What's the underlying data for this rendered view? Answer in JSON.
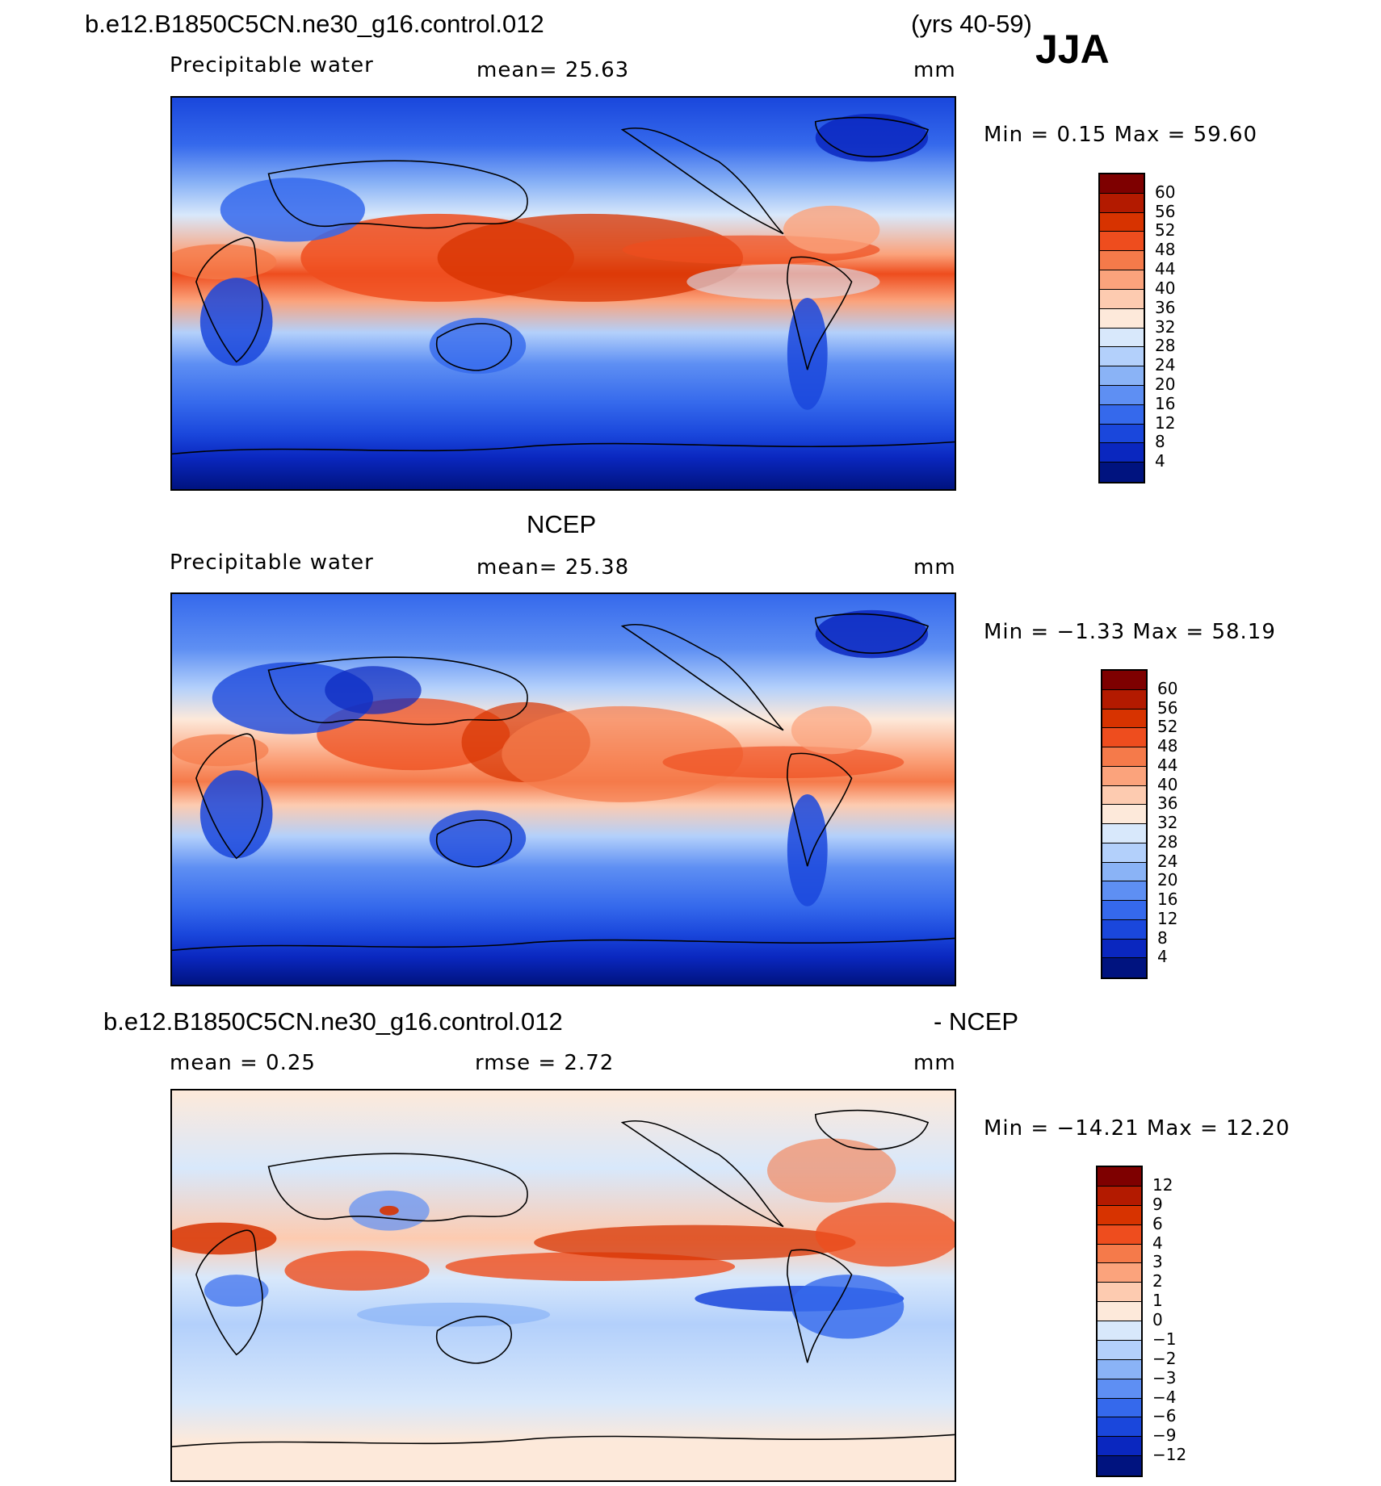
{
  "header": {
    "case_name": "b.e12.B1850C5CN.ne30_g16.control.012",
    "years": "(yrs 40-59)",
    "season": "JJA"
  },
  "panels": [
    {
      "id": "model",
      "title": "",
      "variable": "Precipitable water",
      "mean_text": "mean=   25.63",
      "units": "mm",
      "minmax_text": "Min =    0.15  Max =   59.60"
    },
    {
      "id": "obs",
      "title": "NCEP",
      "variable": "Precipitable water",
      "mean_text": "mean=   25.38",
      "units": "mm",
      "minmax_text": "Min =  −1.33  Max =   58.19"
    },
    {
      "id": "diff",
      "title_left": "b.e12.B1850C5CN.ne30_g16.control.012",
      "title_right": "- NCEP",
      "mean_text": "mean =    0.25",
      "rmse_text": "rmse =    2.72",
      "units": "mm",
      "minmax_text": "Min = −14.21  Max =   12.20"
    }
  ],
  "colorbar_abs": {
    "labels": [
      "60",
      "56",
      "52",
      "48",
      "44",
      "40",
      "36",
      "32",
      "28",
      "24",
      "20",
      "16",
      "12",
      "8",
      "4"
    ],
    "colors": [
      "#7e0000",
      "#b31a00",
      "#d73300",
      "#ee4d1e",
      "#f57a4a",
      "#fba37c",
      "#fdcbb0",
      "#fde9da",
      "#d8e8fb",
      "#b3d0fb",
      "#8ab3f6",
      "#5e8ff3",
      "#3569ec",
      "#1a47dc",
      "#0a27bf",
      "#00137f"
    ]
  },
  "colorbar_diff": {
    "labels": [
      "12",
      "9",
      "6",
      "4",
      "3",
      "2",
      "1",
      "0",
      "−1",
      "−2",
      "−3",
      "−4",
      "−6",
      "−9",
      "−12"
    ],
    "colors": [
      "#7e0000",
      "#b31a00",
      "#d73300",
      "#ee4d1e",
      "#f57a4a",
      "#fba37c",
      "#fdcbb0",
      "#fde9da",
      "#d8e8fb",
      "#b3d0fb",
      "#8ab3f6",
      "#5e8ff3",
      "#3569ec",
      "#1a47dc",
      "#0a27bf",
      "#00137f"
    ]
  }
}
